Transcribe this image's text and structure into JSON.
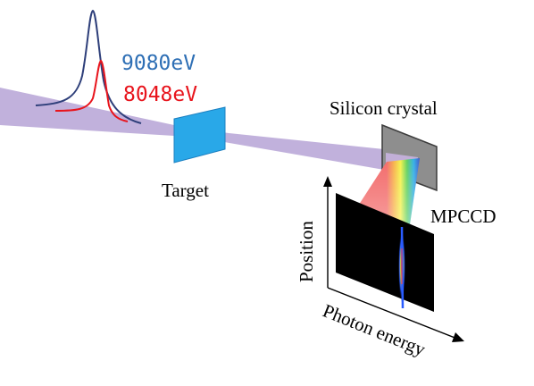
{
  "spectrum": {
    "peak_high_label": "9080eV",
    "peak_low_label": "8048eV",
    "peak_high_color": "#2e6fb5",
    "peak_low_color": "#e8141c"
  },
  "labels": {
    "crystal": "Silicon crystal",
    "target": "Target",
    "detector": "MPCCD",
    "axis_vertical": "Position",
    "axis_horizontal": "Photon energy"
  },
  "colors": {
    "beam": "#b6a3d6",
    "target": "#29a8e8",
    "crystal": "#8e8e8e",
    "detector": "#000000",
    "text": "#000000"
  }
}
